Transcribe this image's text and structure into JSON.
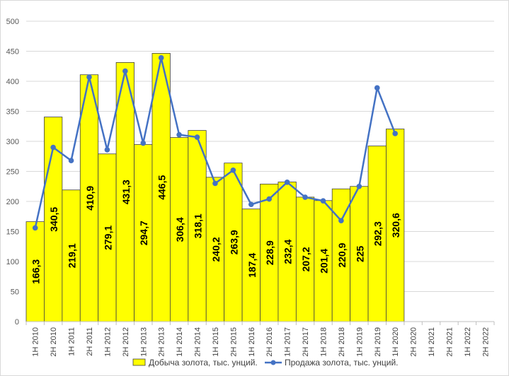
{
  "chart_data": {
    "type": "bar",
    "categories": [
      "1H 2010",
      "2H 2010",
      "1H 2011",
      "2H 2011",
      "1H 2012",
      "2H 2012",
      "1H 2013",
      "2H 2013",
      "1H 2014",
      "2H 2014",
      "1H 2015",
      "2H 2015",
      "1H 2016",
      "2H 2016",
      "1H 2017",
      "2H 2017",
      "1H 2018",
      "2H 2018",
      "1H 2019",
      "2H 2019",
      "1H 2020",
      "2H 2020",
      "1H 2021",
      "2H 2021",
      "1H 2022",
      "2H 2022"
    ],
    "bar_labels": [
      "166,3",
      "340,5",
      "219,1",
      "410,9",
      "279,1",
      "431,3",
      "294,7",
      "446,5",
      "306,4",
      "318,1",
      "240,2",
      "263,9",
      "187,4",
      "228,9",
      "232,4",
      "207,2",
      "201,4",
      "220,9",
      "225",
      "292,3",
      "320,6"
    ],
    "series": [
      {
        "name": "Добыча золота, тыс. унций.",
        "kind": "bar",
        "color": "#ffff00",
        "values": [
          166.3,
          340.5,
          219.1,
          410.9,
          279.1,
          431.3,
          294.7,
          446.5,
          306.4,
          318.1,
          240.2,
          263.9,
          187.4,
          228.9,
          232.4,
          207.2,
          201.4,
          220.9,
          225,
          292.3,
          320.6,
          null,
          null,
          null,
          null,
          null
        ]
      },
      {
        "name": "Продажа золота, тыс. унций.",
        "kind": "line",
        "color": "#4472c4",
        "values": [
          156,
          290,
          268,
          407,
          286,
          417,
          297,
          439,
          311,
          307,
          230,
          252,
          195,
          204,
          232,
          207,
          201,
          168,
          225,
          389,
          313,
          null,
          null,
          null,
          null,
          null
        ]
      }
    ],
    "ylim": [
      0,
      500
    ],
    "yticks": [
      "0",
      "50",
      "100",
      "150",
      "200",
      "250",
      "300",
      "350",
      "400",
      "450",
      "500"
    ],
    "grid": true,
    "legend_position": "bottom"
  }
}
